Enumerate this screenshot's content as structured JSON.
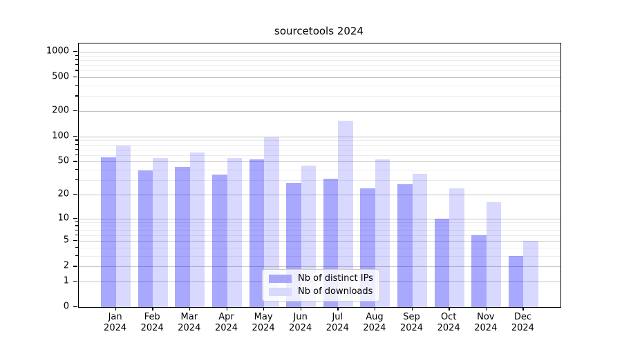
{
  "title": "sourcetools 2024",
  "chart_data": {
    "type": "bar",
    "title": "sourcetools 2024",
    "scale": "log1p",
    "grid": true,
    "legend_position": "lower center",
    "categories": [
      "Jan",
      "Feb",
      "Mar",
      "Apr",
      "May",
      "Jun",
      "Jul",
      "Aug",
      "Sep",
      "Oct",
      "Nov",
      "Dec"
    ],
    "year_label": "2024",
    "series": [
      {
        "name": "Nb of distinct IPs",
        "bar_color": "rgba(0,0,255,0.34)",
        "legend_color": "#a8a8fa",
        "values": [
          57,
          39,
          43,
          35,
          53,
          28,
          31,
          24,
          27,
          10,
          6,
          3
        ]
      },
      {
        "name": "Nb of downloads",
        "bar_color": "rgba(0,0,255,0.15)",
        "legend_color": "#d9d9fd",
        "values": [
          78,
          55,
          65,
          56,
          97,
          45,
          155,
          53,
          36,
          24,
          16,
          5
        ]
      }
    ],
    "y_ticks": [
      0,
      1,
      2,
      5,
      10,
      20,
      50,
      100,
      200,
      500,
      1000
    ],
    "y_minor_ticks": [
      3,
      4,
      6,
      7,
      8,
      9,
      30,
      40,
      60,
      70,
      80,
      90,
      300,
      400,
      600,
      700,
      800,
      900
    ],
    "ylim": [
      0,
      1251
    ],
    "grid_major_color": "#c3c3c3",
    "grid_minor_color": "#ececec"
  }
}
